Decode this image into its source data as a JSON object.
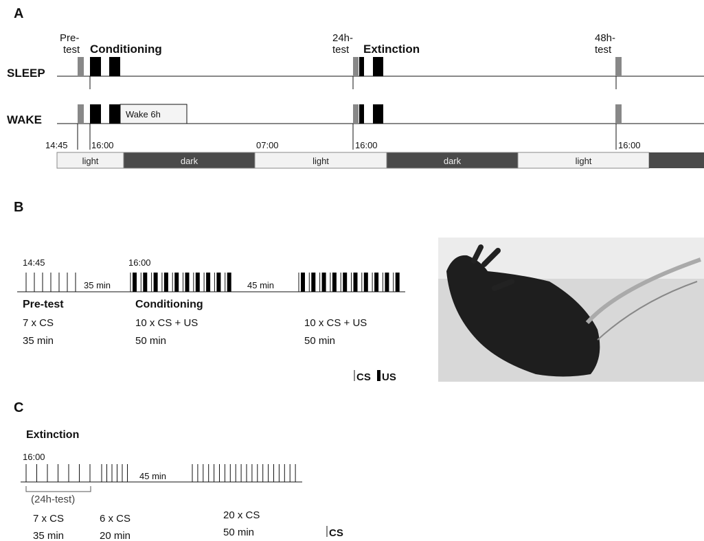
{
  "panel_a": {
    "label": "A",
    "pretest": [
      "Pre-",
      "test"
    ],
    "conditioning": "Conditioning",
    "test24": [
      "24h-",
      "test"
    ],
    "extinction": "Extinction",
    "test48": [
      "48h-",
      "test"
    ],
    "rows": [
      "SLEEP",
      "WAKE"
    ],
    "wake_box": "Wake 6h",
    "times": [
      "14:45",
      "16:00",
      "07:00",
      "16:00",
      "16:00"
    ],
    "cycle": [
      "light",
      "dark",
      "light",
      "dark",
      "light"
    ]
  },
  "panel_b": {
    "label": "B",
    "start": "14:45",
    "cond_start": "16:00",
    "gap1": "35 min",
    "gap2": "45 min",
    "groups": [
      {
        "title": "Pre-test",
        "lines": [
          "7 x CS",
          "35 min"
        ]
      },
      {
        "title": "Conditioning",
        "lines": [
          "10 x CS + US",
          "50 min"
        ]
      },
      {
        "lines": [
          "10 x CS + US",
          "50 min"
        ]
      }
    ],
    "legend": [
      "CS",
      "US"
    ]
  },
  "panel_c": {
    "label": "C",
    "title": "Extinction",
    "start": "16:00",
    "bracket": "(24h-test)",
    "gap": "45 min",
    "groups": [
      {
        "lines": [
          "7 x CS",
          "35 min"
        ]
      },
      {
        "lines": [
          "6 x CS",
          "20 min"
        ]
      },
      {
        "lines": [
          "20 x CS",
          "50 min"
        ]
      }
    ],
    "legend": "CS"
  }
}
